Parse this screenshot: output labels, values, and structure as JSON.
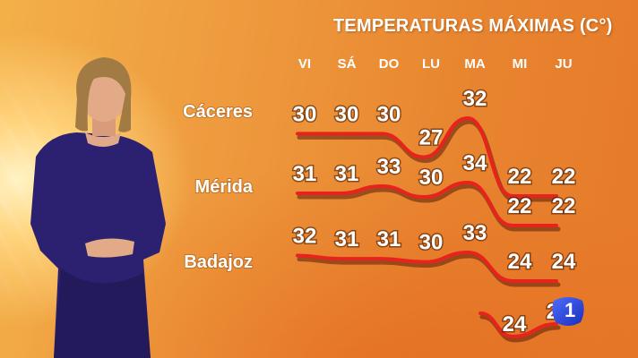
{
  "chart_data": {
    "type": "line",
    "title": "TEMPERATURAS MÁXIMAS (C°)",
    "categories": [
      "VI",
      "SÁ",
      "DO",
      "LU",
      "MA",
      "MI",
      "JU"
    ],
    "series": [
      {
        "name": "Cáceres",
        "values": [
          30,
          30,
          30,
          27,
          32,
          22,
          22
        ]
      },
      {
        "name": "Mérida",
        "values": [
          31,
          31,
          33,
          30,
          34,
          22,
          22
        ]
      },
      {
        "name": "Badajoz",
        "values": [
          32,
          31,
          31,
          30,
          33,
          24,
          24
        ]
      }
    ],
    "extra_row": {
      "values": [
        null,
        null,
        null,
        null,
        null,
        24,
        21
      ]
    },
    "line_color": "#e8221c"
  },
  "logo": {
    "text": "1",
    "color": "#1a3fd8"
  }
}
